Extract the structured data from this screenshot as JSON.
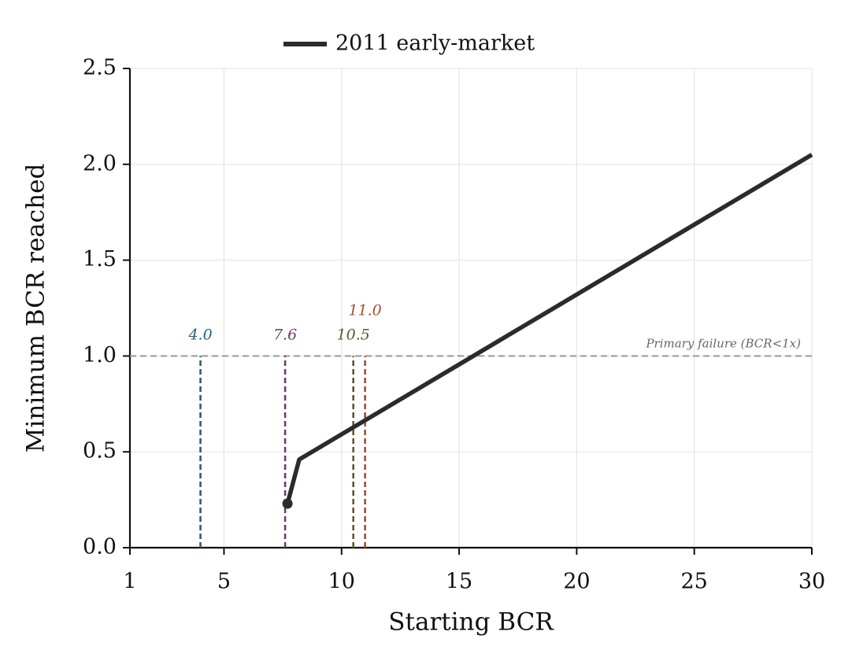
{
  "chart_data": {
    "type": "line",
    "x_label": "Starting BCR",
    "y_label": "Minimum BCR reached",
    "x": [
      7.7,
      8.2,
      30
    ],
    "series": [
      {
        "name": "2011 early-market",
        "color": "#2b2b2b",
        "values": [
          0.23,
          0.46,
          2.05
        ]
      }
    ],
    "xlim": [
      1,
      30
    ],
    "xticks": [
      1,
      5,
      10,
      15,
      20,
      25,
      30
    ],
    "ylim": [
      0,
      2.5
    ],
    "yticks": [
      {
        "value": 0,
        "label": "0.0"
      },
      0.5,
      {
        "value": 1,
        "label": "1.0"
      },
      1.5,
      {
        "value": 2,
        "label": "2.0"
      },
      2.5
    ],
    "grid": true,
    "legend": "top",
    "reference_line": {
      "value": 1,
      "label": "Primary failure (BCR<1x)",
      "color": "#999999"
    },
    "thresholds": [
      {
        "value": 4.0,
        "label": "4.0",
        "color": "#2a6079"
      },
      {
        "value": 7.6,
        "label": "7.6",
        "color": "#6d3d6b"
      },
      {
        "value": 10.5,
        "label": "10.5",
        "color": "#5d5a2e"
      },
      {
        "value": 11.0,
        "label": "11.0",
        "color": "#a0502c"
      }
    ]
  }
}
